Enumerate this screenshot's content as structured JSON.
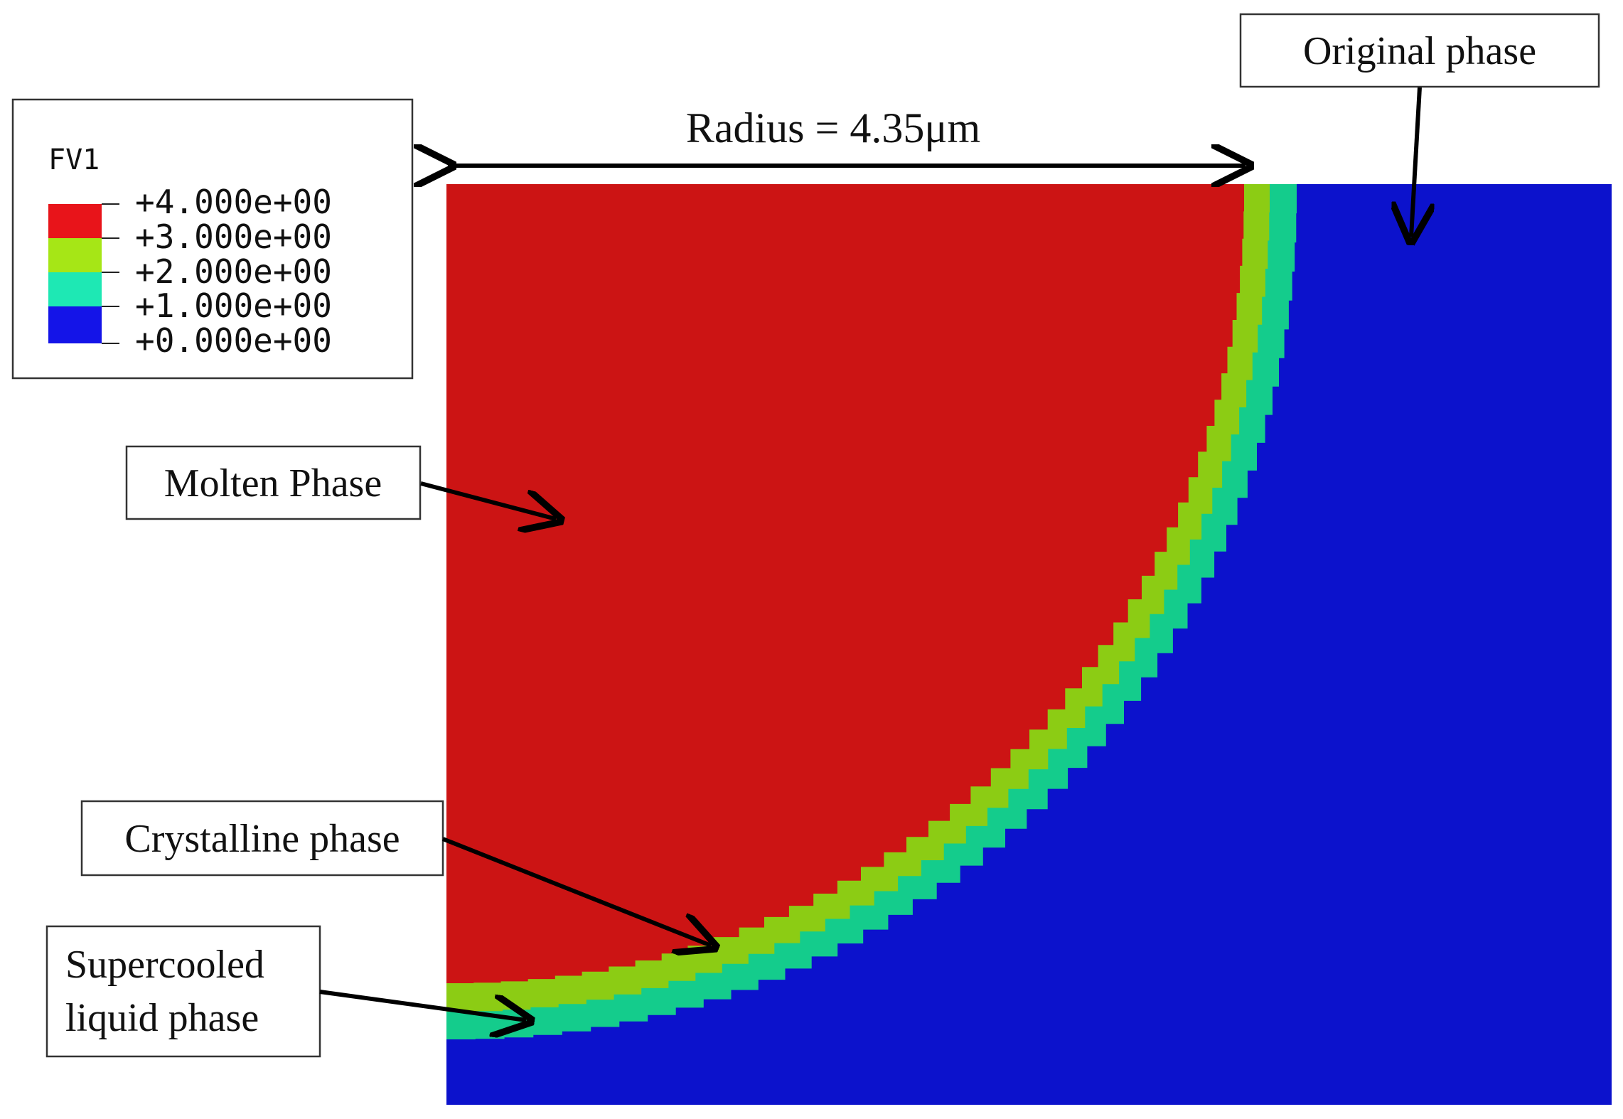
{
  "legend": {
    "title": "FV1",
    "ticks": [
      "+4.000e+00",
      "+3.000e+00",
      "+2.000e+00",
      "+1.000e+00",
      "+0.000e+00"
    ],
    "bands": [
      {
        "color": "#e8141a"
      },
      {
        "color": "#a6e616"
      },
      {
        "color": "#1ee8b4"
      },
      {
        "color": "#1414e8"
      }
    ]
  },
  "dimension": {
    "label": "Radius = 4.35μm"
  },
  "callouts": {
    "original": "Original phase",
    "molten": "Molten Phase",
    "crystalline": "Crystalline phase",
    "supercooled_line1": "Supercooled",
    "supercooled_line2": "liquid phase"
  },
  "colors": {
    "molten": "#cc1414",
    "crystalline": "#8ccc14",
    "supercooled": "#14cc8c",
    "original": "#0c12cc"
  }
}
